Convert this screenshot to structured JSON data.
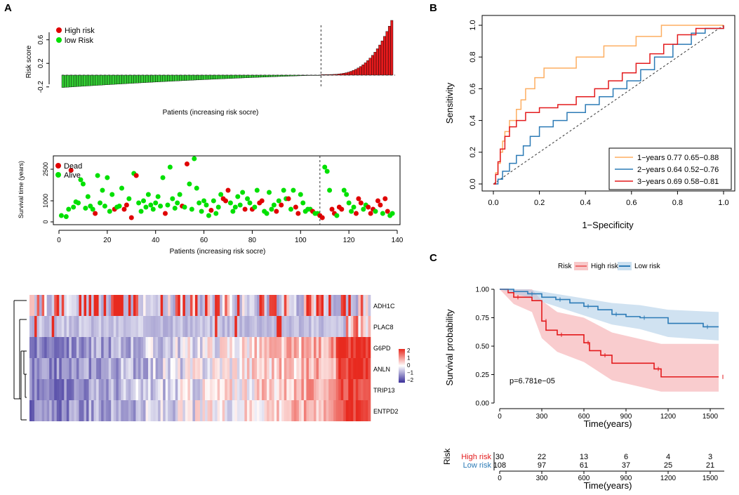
{
  "panels": {
    "a": "A",
    "b": "B",
    "c": "C"
  },
  "colors": {
    "high": "#e31a1c",
    "low": "#2c7bb6",
    "green": "#00e000",
    "red": "#e00000",
    "heat_low": "#3a2f9a",
    "heat_mid": "#ffffff",
    "heat_high": "#e82a1f",
    "orange": "#fdae61",
    "blue": "#2c7bb6"
  },
  "chart_data": [
    {
      "id": "risk_score",
      "type": "bar",
      "title": "",
      "xlabel": "Patients (increasing risk socre)",
      "ylabel": "Risk score",
      "ylim": [
        -0.25,
        1.0
      ],
      "yticks": [
        "-0.2",
        "0.2",
        "0.6"
      ],
      "cutoff_index": 108,
      "n": 138,
      "legend": [
        "High risk",
        "low Risk"
      ],
      "low_range": [
        -0.21,
        0.0
      ],
      "high_range": [
        0.01,
        0.93
      ]
    },
    {
      "id": "survival_time",
      "type": "scatter",
      "xlabel": "Patients (increasing risk socre)",
      "ylabel": "Survival time (years)",
      "xlim": [
        0,
        140
      ],
      "ylim": [
        0,
        3000
      ],
      "xticks": [
        "0",
        "20",
        "40",
        "60",
        "80",
        "100",
        "120",
        "140"
      ],
      "yticks": [
        "0",
        "1000",
        "2500"
      ],
      "legend": [
        "Dead",
        "Alive"
      ],
      "cutoff_index": 108,
      "points": [
        [
          1,
          300,
          0
        ],
        [
          3,
          250,
          0
        ],
        [
          4,
          600,
          0
        ],
        [
          5,
          2450,
          1
        ],
        [
          6,
          700,
          0
        ],
        [
          7,
          950,
          0
        ],
        [
          8,
          900,
          0
        ],
        [
          9,
          2000,
          0
        ],
        [
          10,
          1800,
          0
        ],
        [
          11,
          650,
          0
        ],
        [
          12,
          1200,
          0
        ],
        [
          13,
          750,
          0
        ],
        [
          14,
          600,
          0
        ],
        [
          15,
          400,
          1
        ],
        [
          16,
          2200,
          0
        ],
        [
          17,
          900,
          0
        ],
        [
          18,
          1500,
          0
        ],
        [
          19,
          750,
          0
        ],
        [
          20,
          2100,
          0
        ],
        [
          21,
          500,
          0
        ],
        [
          22,
          1300,
          0
        ],
        [
          23,
          600,
          1
        ],
        [
          24,
          700,
          0
        ],
        [
          25,
          750,
          0
        ],
        [
          26,
          1600,
          0
        ],
        [
          27,
          600,
          1
        ],
        [
          28,
          800,
          1
        ],
        [
          29,
          1100,
          0
        ],
        [
          30,
          200,
          1
        ],
        [
          31,
          2300,
          0
        ],
        [
          32,
          2200,
          1
        ],
        [
          33,
          900,
          0
        ],
        [
          34,
          500,
          0
        ],
        [
          35,
          1000,
          0
        ],
        [
          36,
          700,
          0
        ],
        [
          37,
          1300,
          0
        ],
        [
          38,
          800,
          0
        ],
        [
          39,
          600,
          0
        ],
        [
          40,
          900,
          0
        ],
        [
          41,
          1200,
          0
        ],
        [
          42,
          750,
          0
        ],
        [
          43,
          2100,
          0
        ],
        [
          44,
          400,
          1
        ],
        [
          45,
          800,
          0
        ],
        [
          46,
          2600,
          0
        ],
        [
          47,
          1100,
          0
        ],
        [
          48,
          650,
          0
        ],
        [
          49,
          900,
          0
        ],
        [
          50,
          1300,
          0
        ],
        [
          51,
          750,
          1
        ],
        [
          52,
          700,
          0
        ],
        [
          53,
          2750,
          1
        ],
        [
          54,
          1800,
          0
        ],
        [
          55,
          600,
          0
        ],
        [
          56,
          3000,
          0
        ],
        [
          57,
          1600,
          0
        ],
        [
          58,
          900,
          0
        ],
        [
          59,
          500,
          0
        ],
        [
          60,
          1000,
          0
        ],
        [
          61,
          800,
          0
        ],
        [
          62,
          300,
          0
        ],
        [
          63,
          550,
          1
        ],
        [
          64,
          1000,
          0
        ],
        [
          65,
          400,
          0
        ],
        [
          66,
          700,
          0
        ],
        [
          67,
          1300,
          0
        ],
        [
          68,
          1100,
          1
        ],
        [
          69,
          1000,
          1
        ],
        [
          70,
          1500,
          1
        ],
        [
          71,
          900,
          0
        ],
        [
          72,
          500,
          0
        ],
        [
          73,
          700,
          0
        ],
        [
          74,
          1200,
          0
        ],
        [
          75,
          800,
          0
        ],
        [
          76,
          1400,
          0
        ],
        [
          77,
          600,
          1
        ],
        [
          78,
          1100,
          0
        ],
        [
          79,
          900,
          0
        ],
        [
          80,
          600,
          1
        ],
        [
          81,
          700,
          0
        ],
        [
          82,
          1500,
          0
        ],
        [
          83,
          900,
          1
        ],
        [
          84,
          1000,
          1
        ],
        [
          85,
          500,
          0
        ],
        [
          86,
          400,
          0
        ],
        [
          87,
          1400,
          0
        ],
        [
          88,
          600,
          0
        ],
        [
          89,
          800,
          0
        ],
        [
          90,
          500,
          1
        ],
        [
          91,
          1000,
          0
        ],
        [
          92,
          800,
          1
        ],
        [
          93,
          1500,
          0
        ],
        [
          94,
          1100,
          0
        ],
        [
          95,
          1100,
          1
        ],
        [
          96,
          600,
          0
        ],
        [
          97,
          1500,
          0
        ],
        [
          98,
          700,
          1
        ],
        [
          99,
          400,
          1
        ],
        [
          100,
          1300,
          0
        ],
        [
          101,
          900,
          0
        ],
        [
          102,
          500,
          0
        ],
        [
          103,
          600,
          0
        ],
        [
          104,
          600,
          0
        ],
        [
          105,
          500,
          1
        ],
        [
          106,
          400,
          0
        ],
        [
          107,
          400,
          0
        ],
        [
          108,
          300,
          1
        ],
        [
          109,
          200,
          1
        ],
        [
          110,
          2600,
          0
        ],
        [
          111,
          2400,
          0
        ],
        [
          112,
          1500,
          0
        ],
        [
          113,
          600,
          1
        ],
        [
          114,
          400,
          1
        ],
        [
          115,
          300,
          0
        ],
        [
          116,
          700,
          1
        ],
        [
          117,
          600,
          1
        ],
        [
          118,
          1500,
          0
        ],
        [
          119,
          1300,
          0
        ],
        [
          120,
          900,
          0
        ],
        [
          121,
          500,
          0
        ],
        [
          122,
          700,
          0
        ],
        [
          123,
          400,
          1
        ],
        [
          124,
          1100,
          1
        ],
        [
          125,
          900,
          1
        ],
        [
          126,
          600,
          0
        ],
        [
          127,
          800,
          0
        ],
        [
          128,
          700,
          1
        ],
        [
          129,
          400,
          1
        ],
        [
          130,
          600,
          1
        ],
        [
          131,
          500,
          0
        ],
        [
          132,
          1000,
          1
        ],
        [
          133,
          800,
          1
        ],
        [
          134,
          400,
          0
        ],
        [
          135,
          1100,
          1
        ],
        [
          136,
          500,
          1
        ],
        [
          137,
          300,
          0
        ],
        [
          138,
          400,
          0
        ]
      ]
    },
    {
      "id": "heatmap",
      "type": "heatmap",
      "genes": [
        "ADH1C",
        "PLAC8",
        "G6PD",
        "ANLN",
        "TRIP13",
        "ENTPD2"
      ],
      "legend_ticks": [
        "2",
        "1",
        "0",
        "−1",
        "−2"
      ],
      "value_range": [
        -2,
        2
      ],
      "n_columns": 138
    },
    {
      "id": "roc",
      "type": "line",
      "xlabel": "1−Specificity",
      "ylabel": "Sensitivity",
      "xlim": [
        0,
        1
      ],
      "ylim": [
        0,
        1
      ],
      "xticks": [
        "0.0",
        "0.2",
        "0.4",
        "0.6",
        "0.8",
        "1.0"
      ],
      "yticks": [
        "0.0",
        "0.2",
        "0.4",
        "0.6",
        "0.8",
        "1.0"
      ],
      "series": [
        {
          "name": "1−years 0.77 0.65−0.88",
          "color": "#fdae61",
          "points": [
            [
              0,
              0
            ],
            [
              0.01,
              0.07
            ],
            [
              0.02,
              0.13
            ],
            [
              0.03,
              0.2
            ],
            [
              0.04,
              0.27
            ],
            [
              0.05,
              0.33
            ],
            [
              0.07,
              0.4
            ],
            [
              0.1,
              0.47
            ],
            [
              0.12,
              0.53
            ],
            [
              0.14,
              0.6
            ],
            [
              0.18,
              0.67
            ],
            [
              0.22,
              0.73
            ],
            [
              0.36,
              0.8
            ],
            [
              0.48,
              0.87
            ],
            [
              0.62,
              0.93
            ],
            [
              0.73,
              1.0
            ],
            [
              1.0,
              1.0
            ]
          ]
        },
        {
          "name": "2−years 0.64 0.52−0.76",
          "color": "#2c7bb6",
          "points": [
            [
              0,
              0
            ],
            [
              0.02,
              0.03
            ],
            [
              0.04,
              0.08
            ],
            [
              0.07,
              0.13
            ],
            [
              0.1,
              0.18
            ],
            [
              0.13,
              0.24
            ],
            [
              0.16,
              0.3
            ],
            [
              0.2,
              0.36
            ],
            [
              0.26,
              0.4
            ],
            [
              0.32,
              0.45
            ],
            [
              0.4,
              0.5
            ],
            [
              0.46,
              0.55
            ],
            [
              0.52,
              0.6
            ],
            [
              0.58,
              0.65
            ],
            [
              0.64,
              0.72
            ],
            [
              0.7,
              0.8
            ],
            [
              0.78,
              0.88
            ],
            [
              0.86,
              0.95
            ],
            [
              0.92,
              0.98
            ],
            [
              1.0,
              1.0
            ]
          ]
        },
        {
          "name": "3−years 0.69 0.58−0.81",
          "color": "#e31a1c",
          "points": [
            [
              0,
              0
            ],
            [
              0.01,
              0.06
            ],
            [
              0.02,
              0.14
            ],
            [
              0.03,
              0.22
            ],
            [
              0.05,
              0.3
            ],
            [
              0.07,
              0.36
            ],
            [
              0.1,
              0.4
            ],
            [
              0.14,
              0.45
            ],
            [
              0.2,
              0.48
            ],
            [
              0.28,
              0.5
            ],
            [
              0.36,
              0.55
            ],
            [
              0.44,
              0.6
            ],
            [
              0.5,
              0.65
            ],
            [
              0.56,
              0.7
            ],
            [
              0.62,
              0.76
            ],
            [
              0.68,
              0.82
            ],
            [
              0.74,
              0.88
            ],
            [
              0.8,
              0.94
            ],
            [
              0.88,
              0.98
            ],
            [
              1.0,
              1.0
            ]
          ]
        }
      ]
    },
    {
      "id": "km",
      "type": "line",
      "legend_title": "Risk",
      "xlabel": "Time(years)",
      "ylabel": "Survival probability",
      "xlim": [
        0,
        1600
      ],
      "ylim": [
        0,
        1
      ],
      "xticks": [
        "0",
        "300",
        "600",
        "900",
        "1200",
        "1500"
      ],
      "yticks": [
        "0.00",
        "0.25",
        "0.50",
        "0.75",
        "1.00"
      ],
      "annotation": "p=6.781e−05",
      "series": [
        {
          "name": "High risk",
          "color": "#e31a1c",
          "steps": [
            [
              0,
              1.0
            ],
            [
              60,
              0.97
            ],
            [
              100,
              0.93
            ],
            [
              230,
              0.9
            ],
            [
              300,
              0.72
            ],
            [
              330,
              0.64
            ],
            [
              410,
              0.6
            ],
            [
              580,
              0.6
            ],
            [
              600,
              0.53
            ],
            [
              640,
              0.46
            ],
            [
              720,
              0.42
            ],
            [
              800,
              0.35
            ],
            [
              1100,
              0.3
            ],
            [
              1150,
              0.23
            ],
            [
              1560,
              0.23
            ]
          ],
          "ci": [
            [
              0,
              1.0,
              1.0
            ],
            [
              100,
              0.87,
              1.0
            ],
            [
              230,
              0.8,
              1.0
            ],
            [
              300,
              0.57,
              0.9
            ],
            [
              410,
              0.45,
              0.8
            ],
            [
              600,
              0.36,
              0.75
            ],
            [
              800,
              0.2,
              0.62
            ],
            [
              1150,
              0.1,
              0.52
            ],
            [
              1560,
              0.1,
              0.52
            ]
          ]
        },
        {
          "name": "Low risk",
          "color": "#2c7bb6",
          "steps": [
            [
              0,
              1.0
            ],
            [
              100,
              0.98
            ],
            [
              200,
              0.96
            ],
            [
              300,
              0.93
            ],
            [
              400,
              0.91
            ],
            [
              500,
              0.88
            ],
            [
              600,
              0.85
            ],
            [
              700,
              0.82
            ],
            [
              800,
              0.78
            ],
            [
              900,
              0.76
            ],
            [
              1000,
              0.75
            ],
            [
              1200,
              0.7
            ],
            [
              1450,
              0.67
            ],
            [
              1560,
              0.67
            ]
          ],
          "ci": [
            [
              0,
              1.0,
              1.0
            ],
            [
              200,
              0.93,
              1.0
            ],
            [
              400,
              0.85,
              0.96
            ],
            [
              600,
              0.77,
              0.92
            ],
            [
              800,
              0.69,
              0.88
            ],
            [
              1000,
              0.65,
              0.86
            ],
            [
              1200,
              0.58,
              0.82
            ],
            [
              1560,
              0.55,
              0.8
            ]
          ]
        }
      ],
      "risk_table": {
        "title": "Risk",
        "rows": [
          {
            "label": "High risk",
            "values": [
              "30",
              "22",
              "13",
              "6",
              "4",
              "3"
            ]
          },
          {
            "label": "Low risk",
            "values": [
              "108",
              "97",
              "61",
              "37",
              "25",
              "21"
            ]
          }
        ],
        "xticks": [
          "0",
          "300",
          "600",
          "900",
          "1200",
          "1500"
        ],
        "xlabel": "Time(years)"
      }
    }
  ]
}
